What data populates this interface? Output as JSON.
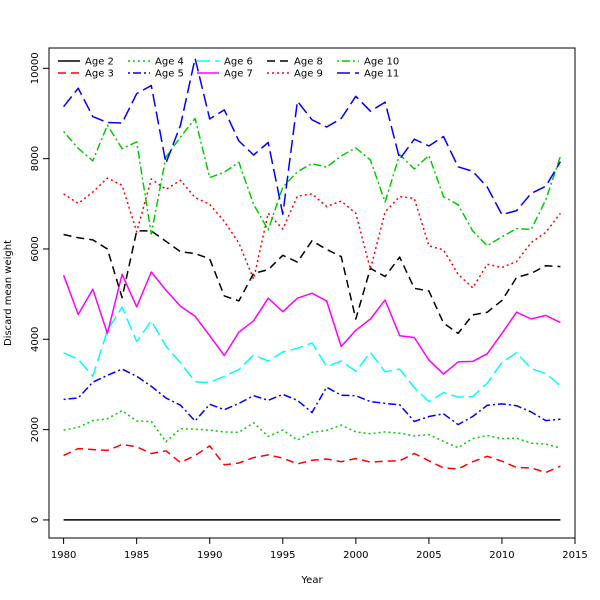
{
  "chart_data": {
    "type": "line",
    "title": "",
    "xlabel": "Year",
    "ylabel": "Discard mean weight",
    "xlim": [
      1979,
      2015
    ],
    "ylim": [
      -400,
      10450
    ],
    "x_ticks": [
      1980,
      1985,
      1990,
      1995,
      2000,
      2005,
      2010,
      2015
    ],
    "y_ticks": [
      0,
      2000,
      4000,
      6000,
      8000,
      10000
    ],
    "grid": false,
    "legend_position": "top-left",
    "x": [
      1980,
      1981,
      1982,
      1983,
      1984,
      1985,
      1986,
      1987,
      1988,
      1989,
      1990,
      1991,
      1992,
      1993,
      1994,
      1995,
      1996,
      1997,
      1998,
      1999,
      2000,
      2001,
      2002,
      2003,
      2004,
      2005,
      2006,
      2007,
      2008,
      2009,
      2010,
      2011,
      2012,
      2013,
      2014
    ],
    "series": [
      {
        "name": "Age 2",
        "color": "#000000",
        "dash": "solid",
        "values": [
          0,
          0,
          0,
          0,
          0,
          0,
          0,
          0,
          0,
          0,
          0,
          0,
          0,
          0,
          0,
          0,
          0,
          0,
          0,
          0,
          0,
          0,
          0,
          0,
          0,
          0,
          0,
          0,
          0,
          0,
          0,
          0,
          0,
          0,
          0
        ]
      },
      {
        "name": "Age 3",
        "color": "#ff0000",
        "dash": "dashed",
        "values": [
          1430,
          1580,
          1560,
          1540,
          1670,
          1620,
          1470,
          1530,
          1270,
          1430,
          1640,
          1220,
          1260,
          1380,
          1440,
          1370,
          1240,
          1320,
          1350,
          1290,
          1360,
          1280,
          1300,
          1310,
          1470,
          1310,
          1150,
          1130,
          1290,
          1410,
          1300,
          1160,
          1150,
          1050,
          1190
        ]
      },
      {
        "name": "Age 4",
        "color": "#00cd00",
        "dash": "dotted",
        "values": [
          1990,
          2050,
          2200,
          2240,
          2420,
          2190,
          2180,
          1730,
          2020,
          2010,
          1990,
          1950,
          1940,
          2150,
          1850,
          1990,
          1770,
          1940,
          1980,
          2100,
          1950,
          1910,
          1950,
          1920,
          1860,
          1890,
          1740,
          1600,
          1800,
          1870,
          1800,
          1810,
          1700,
          1680,
          1590
        ]
      },
      {
        "name": "Age 5",
        "color": "#0000ff",
        "dash": "dotdash",
        "values": [
          2670,
          2700,
          3050,
          3200,
          3340,
          3180,
          2960,
          2700,
          2540,
          2190,
          2560,
          2440,
          2580,
          2750,
          2650,
          2780,
          2650,
          2380,
          2940,
          2760,
          2750,
          2620,
          2580,
          2550,
          2180,
          2290,
          2350,
          2110,
          2290,
          2540,
          2570,
          2530,
          2390,
          2200,
          2230
        ]
      },
      {
        "name": "Age 6",
        "color": "#00ffff",
        "dash": "longdash",
        "values": [
          3700,
          3560,
          3180,
          4200,
          4710,
          3950,
          4410,
          3850,
          3480,
          3060,
          3040,
          3180,
          3330,
          3650,
          3520,
          3720,
          3800,
          3920,
          3400,
          3520,
          3290,
          3710,
          3280,
          3340,
          2930,
          2620,
          2820,
          2720,
          2730,
          3030,
          3490,
          3700,
          3350,
          3240,
          2970
        ]
      },
      {
        "name": "Age 7",
        "color": "#ff00ff",
        "dash": "solid",
        "values": [
          5420,
          4550,
          5110,
          4130,
          5440,
          4720,
          5490,
          5090,
          4730,
          4510,
          4080,
          3640,
          4160,
          4410,
          4910,
          4610,
          4910,
          5020,
          4850,
          3840,
          4200,
          4450,
          4870,
          4080,
          4040,
          3540,
          3230,
          3500,
          3510,
          3680,
          4130,
          4600,
          4450,
          4530,
          4370
        ]
      },
      {
        "name": "Age 8",
        "color": "#000000",
        "dash": "dashed",
        "values": [
          6320,
          6250,
          6200,
          6000,
          4920,
          6400,
          6400,
          6170,
          5940,
          5900,
          5780,
          4960,
          4850,
          5460,
          5540,
          5860,
          5710,
          6180,
          5990,
          5830,
          4450,
          5570,
          5390,
          5820,
          5130,
          5070,
          4360,
          4130,
          4540,
          4600,
          4860,
          5370,
          5460,
          5630,
          5610
        ]
      },
      {
        "name": "Age 9",
        "color": "#ff0000",
        "dash": "dotted",
        "values": [
          7220,
          7010,
          7260,
          7570,
          7410,
          6380,
          7550,
          7320,
          7520,
          7140,
          6990,
          6610,
          6130,
          5330,
          6790,
          6440,
          7170,
          7220,
          6940,
          7060,
          6790,
          5550,
          6820,
          7160,
          7120,
          6070,
          5980,
          5440,
          5140,
          5660,
          5590,
          5720,
          6140,
          6370,
          6790
        ]
      },
      {
        "name": "Age 10",
        "color": "#00cd00",
        "dash": "dotdash",
        "values": [
          8600,
          8230,
          7950,
          8740,
          8220,
          8370,
          6330,
          8030,
          8480,
          8890,
          7580,
          7700,
          7920,
          6990,
          6420,
          7370,
          7710,
          7890,
          7810,
          8060,
          8240,
          7970,
          7040,
          8090,
          7770,
          8070,
          7160,
          6980,
          6400,
          6070,
          6270,
          6450,
          6430,
          7090,
          8050
        ]
      },
      {
        "name": "Age 11",
        "color": "#0000ff",
        "dash": "longdash",
        "values": [
          9150,
          9560,
          8930,
          8800,
          8790,
          9440,
          9620,
          7900,
          8740,
          10220,
          8880,
          9080,
          8390,
          8080,
          8360,
          6770,
          9270,
          8860,
          8700,
          8890,
          9380,
          9050,
          9250,
          7990,
          8430,
          8280,
          8490,
          7820,
          7720,
          7370,
          6760,
          6850,
          7230,
          7390,
          7930
        ]
      }
    ]
  }
}
